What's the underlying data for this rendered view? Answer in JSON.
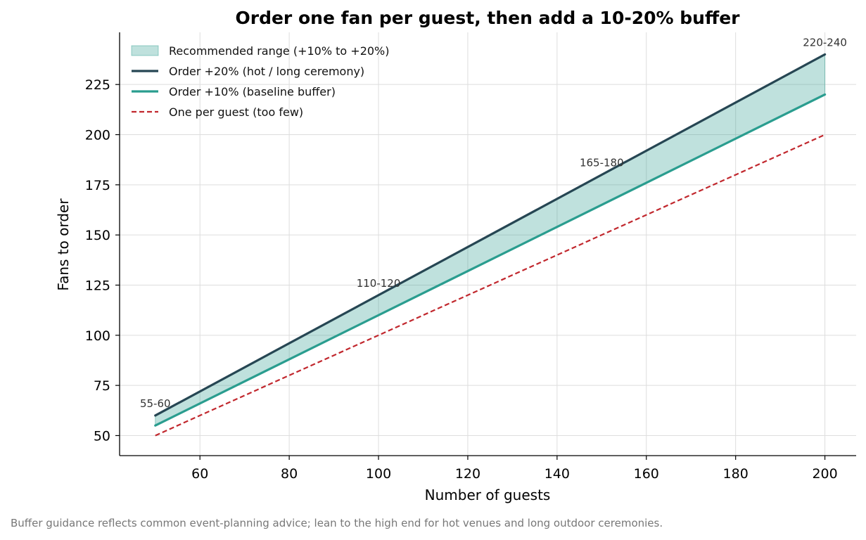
{
  "chart_data": {
    "type": "line",
    "title": "Order one fan per guest, then add a 10-20% buffer",
    "xlabel": "Number of guests",
    "ylabel": "Fans to order",
    "xlim": [
      42,
      207
    ],
    "ylim": [
      40,
      251
    ],
    "x_ticks": [
      60,
      80,
      100,
      120,
      140,
      160,
      180,
      200
    ],
    "y_ticks": [
      50,
      75,
      100,
      125,
      150,
      175,
      200,
      225
    ],
    "grid": true,
    "legend_position": "top-left",
    "x": [
      50,
      200
    ],
    "series": [
      {
        "key": "high",
        "name": "Order +20% (hot / long ceremony)",
        "values": [
          60,
          240
        ],
        "color": "#264653",
        "style": "solid"
      },
      {
        "key": "low",
        "name": "Order +10% (baseline buffer)",
        "values": [
          55,
          220
        ],
        "color": "#2a9d8f",
        "style": "solid"
      },
      {
        "key": "base",
        "name": "One per guest (too few)",
        "values": [
          50,
          200
        ],
        "color": "#c1272d",
        "style": "dashed"
      }
    ],
    "band": {
      "name": "Recommended range (+10% to +20%)",
      "lower": "low",
      "upper": "high",
      "color": "#2a9d8f",
      "opacity": 0.3
    },
    "legend_order": [
      "band",
      "high",
      "low",
      "base"
    ],
    "annotations": [
      {
        "x": 50,
        "y": 60,
        "text": "55-60"
      },
      {
        "x": 100,
        "y": 120,
        "text": "110-120"
      },
      {
        "x": 150,
        "y": 180,
        "text": "165-180"
      },
      {
        "x": 200,
        "y": 240,
        "text": "220-240"
      }
    ]
  },
  "caption": "Buffer guidance reflects common event-planning advice; lean to the high end for hot venues and long outdoor ceremonies."
}
